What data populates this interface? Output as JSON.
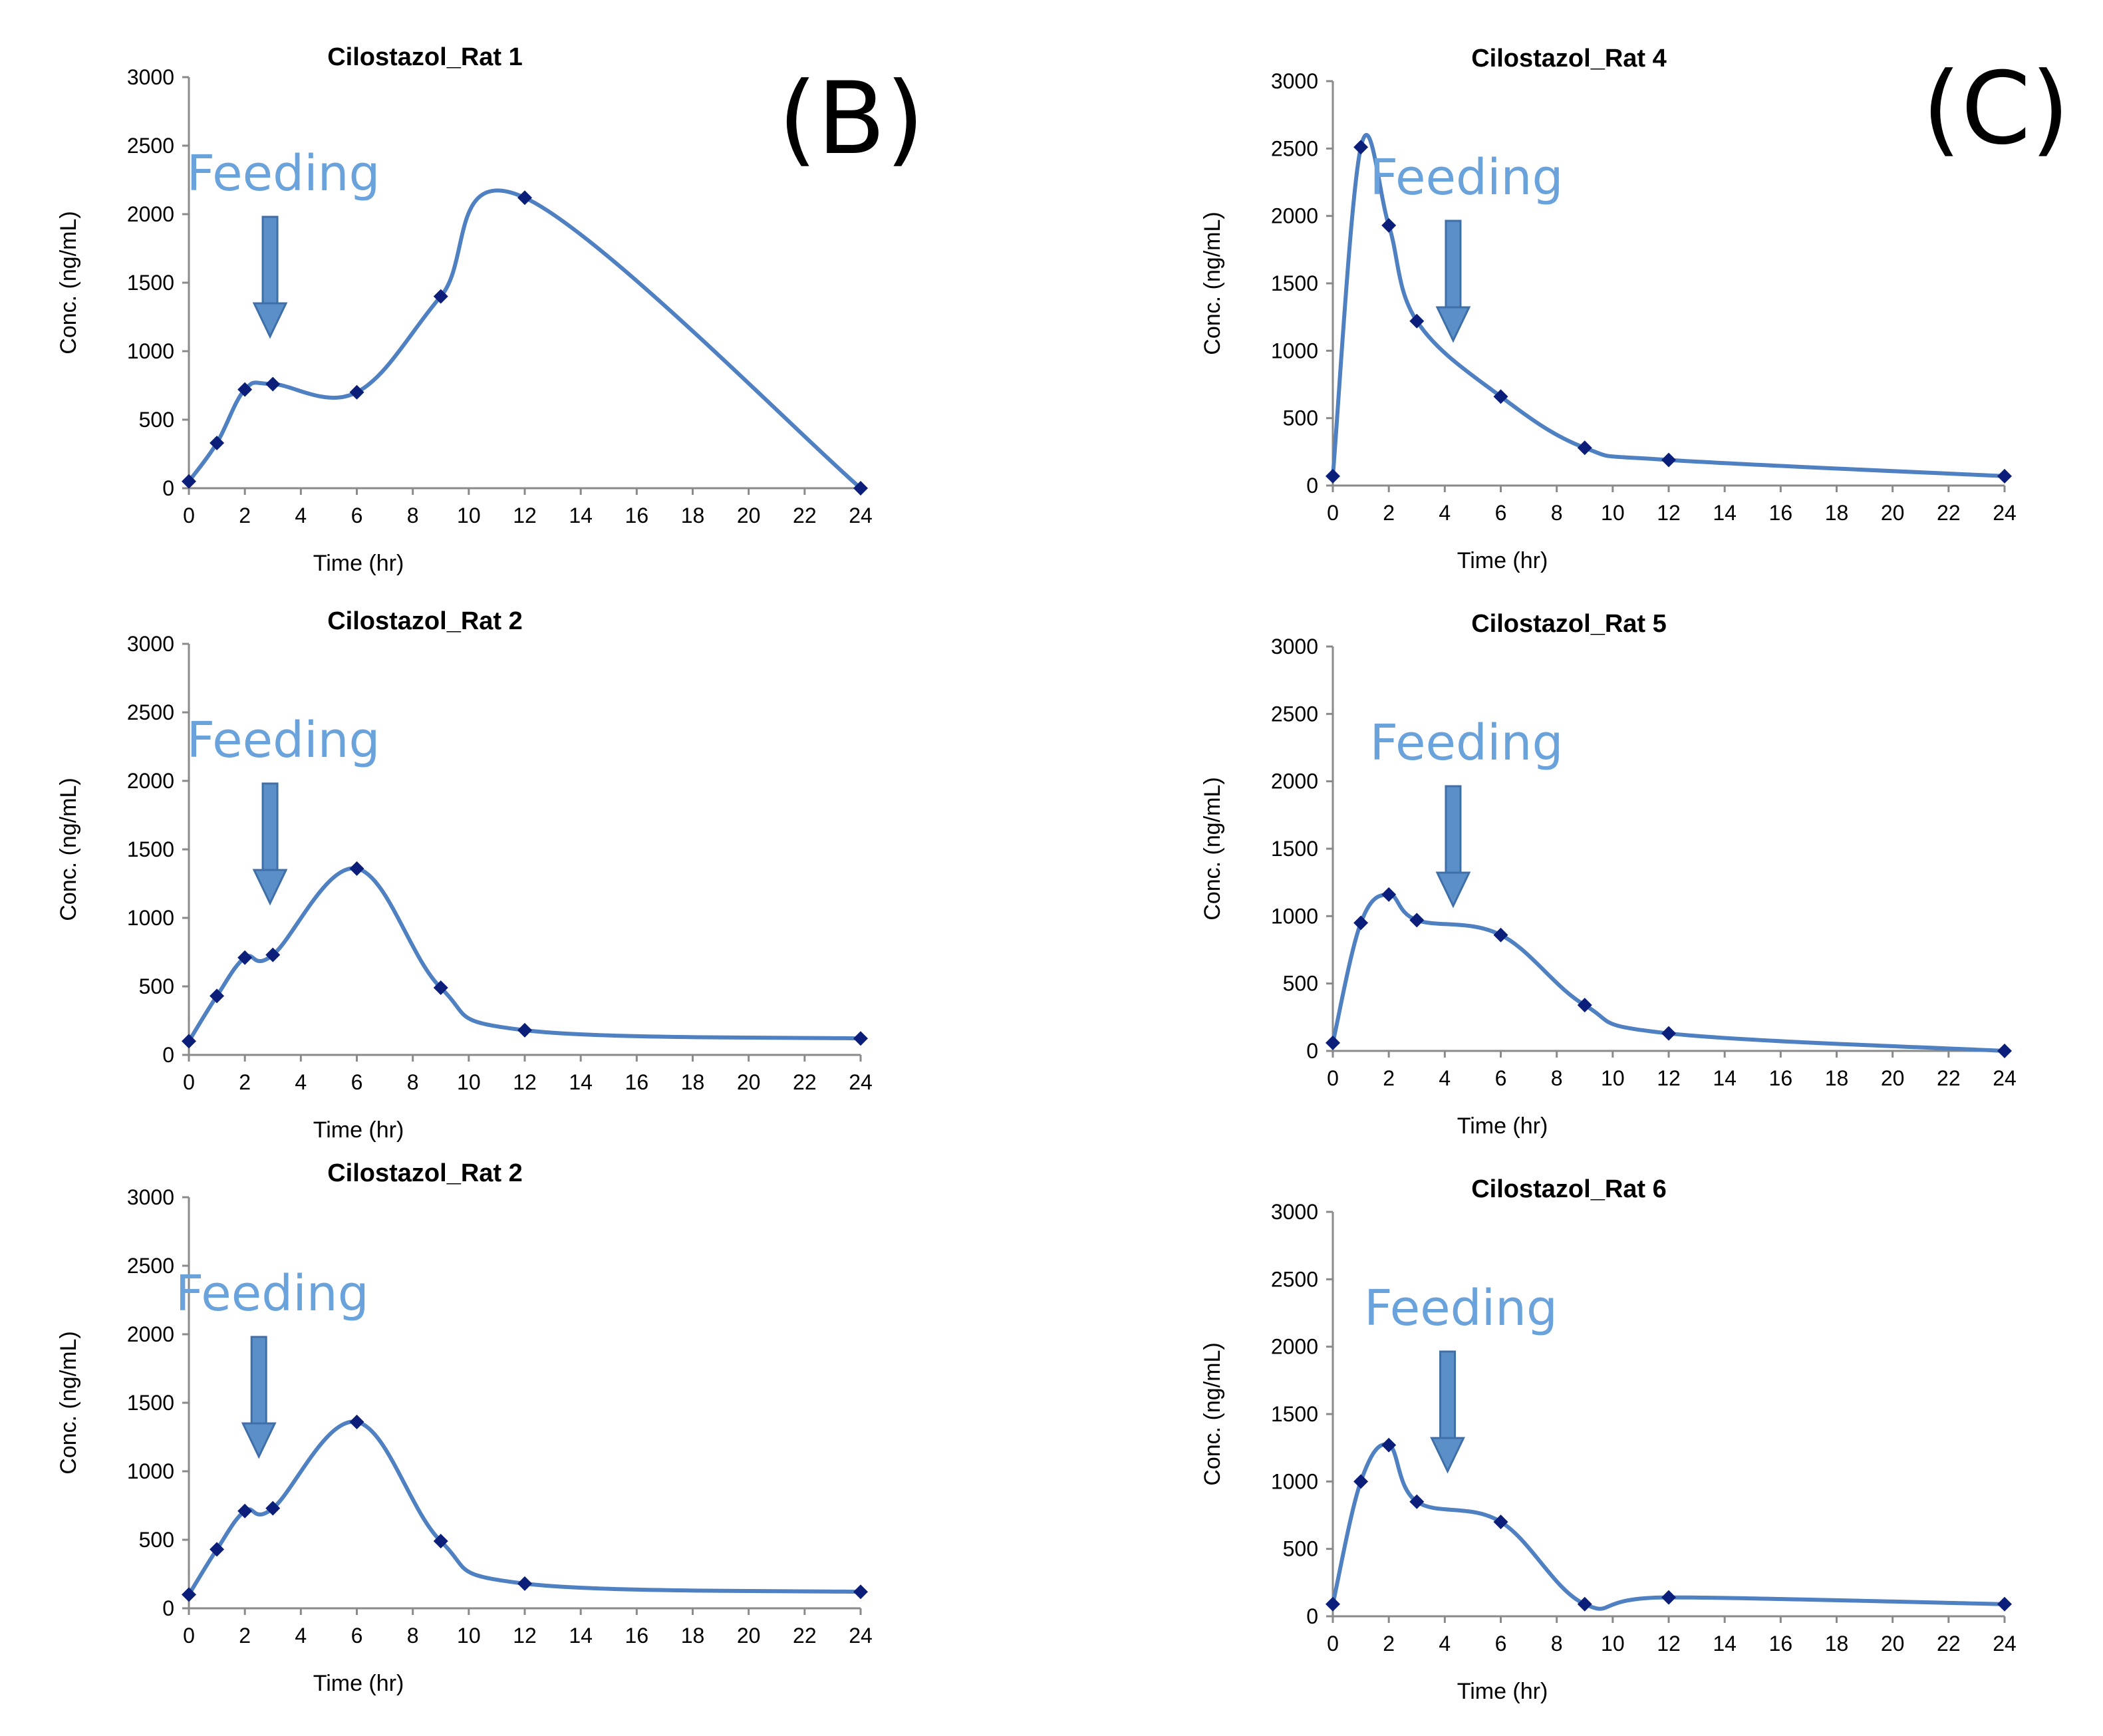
{
  "panel_labels": [
    "(B)",
    "(C)"
  ],
  "annotation_text": "Feeding",
  "colors": {
    "line": "#4f80c2",
    "marker": "#0b1f7a",
    "annotation": "#6aa2dc",
    "arrow": "#5b8fc7"
  },
  "chart_data": [
    {
      "type": "line",
      "title": "Cilostazol_Rat 1",
      "xlabel": "Time (hr)",
      "ylabel": "Conc.  (ng/mL)",
      "xlim": [
        0,
        24
      ],
      "ylim": [
        0,
        3000
      ],
      "xticks": [
        "0",
        "2",
        "4",
        "6",
        "8",
        "10",
        "12",
        "14",
        "16",
        "18",
        "20",
        "22",
        "24"
      ],
      "yticks": [
        "0",
        "500",
        "1000",
        "1500",
        "2000",
        "2500",
        "3000"
      ],
      "annotation": {
        "text": "Feeding",
        "x": 2.9
      },
      "x": [
        0,
        1,
        2,
        3,
        6,
        9,
        12,
        24
      ],
      "y": [
        50,
        330,
        720,
        760,
        700,
        1400,
        2120,
        0
      ]
    },
    {
      "type": "line",
      "title": "Cilostazol_Rat 2",
      "xlabel": "Time (hr)",
      "ylabel": "Conc.  (ng/mL)",
      "xlim": [
        0,
        24
      ],
      "ylim": [
        0,
        3000
      ],
      "xticks": [
        "0",
        "2",
        "4",
        "6",
        "8",
        "10",
        "12",
        "14",
        "16",
        "18",
        "20",
        "22",
        "24"
      ],
      "yticks": [
        "0",
        "500",
        "1000",
        "1500",
        "2000",
        "2500",
        "3000"
      ],
      "annotation": {
        "text": "Feeding",
        "x": 2.9
      },
      "x": [
        0,
        1,
        2,
        3,
        6,
        9,
        12,
        24
      ],
      "y": [
        100,
        430,
        710,
        730,
        1360,
        490,
        180,
        120
      ]
    },
    {
      "type": "line",
      "title": "Cilostazol_Rat 2",
      "xlabel": "Time (hr)",
      "ylabel": "Conc.  (ng/mL)",
      "xlim": [
        0,
        24
      ],
      "ylim": [
        0,
        3000
      ],
      "xticks": [
        "0",
        "2",
        "4",
        "6",
        "8",
        "10",
        "12",
        "14",
        "16",
        "18",
        "20",
        "22",
        "24"
      ],
      "yticks": [
        "0",
        "500",
        "1000",
        "1500",
        "2000",
        "2500",
        "3000"
      ],
      "annotation": {
        "text": "Feeding",
        "x": 2.5
      },
      "x": [
        0,
        1,
        2,
        3,
        6,
        9,
        12,
        24
      ],
      "y": [
        100,
        430,
        710,
        730,
        1360,
        490,
        180,
        120
      ]
    },
    {
      "type": "line",
      "title": "Cilostazol_Rat 4",
      "xlabel": "Time (hr)",
      "ylabel": "Conc.  (ng/mL)",
      "xlim": [
        0,
        24
      ],
      "ylim": [
        0,
        3000
      ],
      "xticks": [
        "0",
        "2",
        "4",
        "6",
        "8",
        "10",
        "12",
        "14",
        "16",
        "18",
        "20",
        "22",
        "24"
      ],
      "yticks": [
        "0",
        "500",
        "1000",
        "1500",
        "2000",
        "2500",
        "3000"
      ],
      "annotation": {
        "text": "Feeding",
        "x": 4.3
      },
      "x": [
        0,
        1,
        2,
        3,
        6,
        9,
        12,
        24
      ],
      "y": [
        70,
        2510,
        1930,
        1220,
        660,
        280,
        190,
        70
      ]
    },
    {
      "type": "line",
      "title": "Cilostazol_Rat 5",
      "xlabel": "Time (hr)",
      "ylabel": "Conc.  (ng/mL)",
      "xlim": [
        0,
        24
      ],
      "ylim": [
        0,
        3000
      ],
      "xticks": [
        "0",
        "2",
        "4",
        "6",
        "8",
        "10",
        "12",
        "14",
        "16",
        "18",
        "20",
        "22",
        "24"
      ],
      "yticks": [
        "0",
        "500",
        "1000",
        "1500",
        "2000",
        "2500",
        "3000"
      ],
      "annotation": {
        "text": "Feeding",
        "x": 4.3
      },
      "x": [
        0,
        1,
        2,
        3,
        6,
        9,
        12,
        24
      ],
      "y": [
        60,
        950,
        1160,
        970,
        860,
        340,
        130,
        0
      ]
    },
    {
      "type": "line",
      "title": "Cilostazol_Rat 6",
      "xlabel": "Time (hr)",
      "ylabel": "Conc.  (ng/mL)",
      "xlim": [
        0,
        24
      ],
      "ylim": [
        0,
        3000
      ],
      "xticks": [
        "0",
        "2",
        "4",
        "6",
        "8",
        "10",
        "12",
        "14",
        "16",
        "18",
        "20",
        "22",
        "24"
      ],
      "yticks": [
        "0",
        "500",
        "1000",
        "1500",
        "2000",
        "2500",
        "3000"
      ],
      "annotation": {
        "text": "Feeding",
        "x": 4.1
      },
      "x": [
        0,
        1,
        2,
        3,
        6,
        9,
        12,
        24
      ],
      "y": [
        90,
        1000,
        1270,
        850,
        700,
        90,
        140,
        90
      ]
    }
  ]
}
